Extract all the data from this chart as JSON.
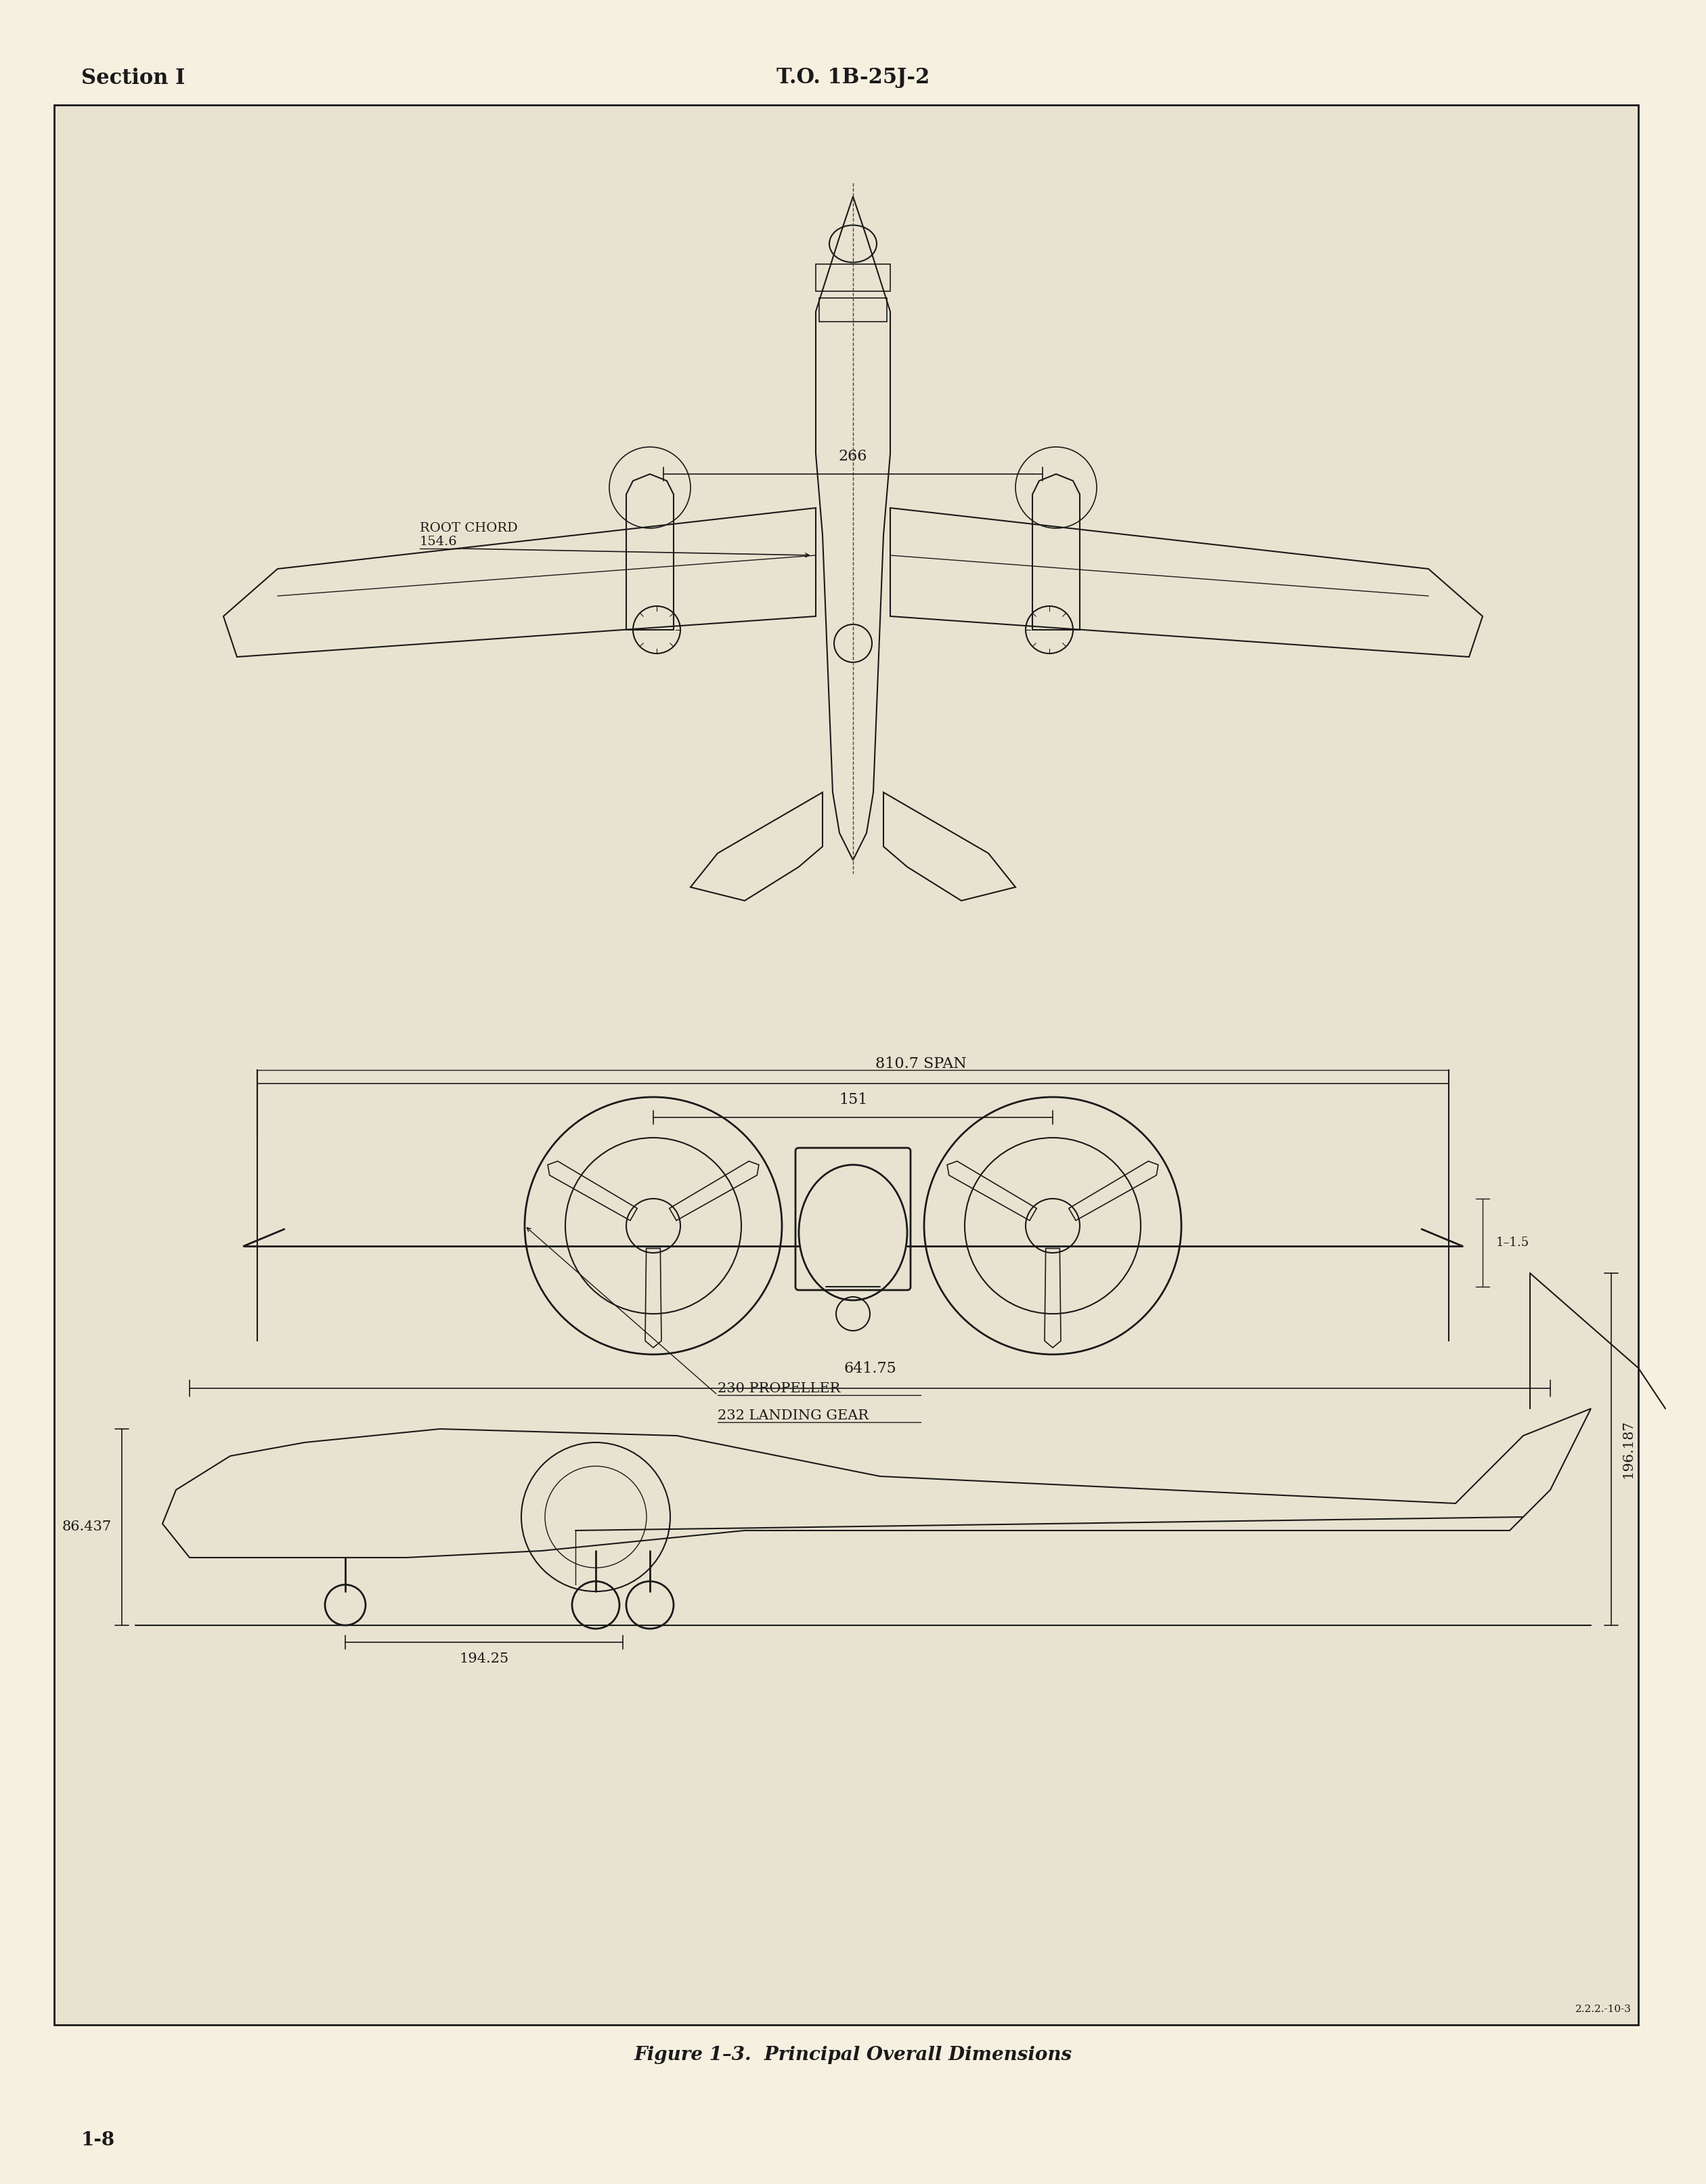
{
  "page_bg": "#f5f0e0",
  "border_bg": "#e8e3d0",
  "text_color": "#1a1a1a",
  "header_left": "Section I",
  "header_center": "T.O. 1B-25J-2",
  "footer_left": "1-8",
  "figure_caption": "Figure 1–3.  Principal Overall Dimensions",
  "dim_266": "266",
  "dim_root_chord": "ROOT CHORD",
  "dim_154_6": "154.6",
  "dim_810_7": "810.7 SPAN",
  "dim_151": "151",
  "dim_11_5": "1–1.5",
  "dim_230": "230 PROPELLER",
  "dim_232": "232 LANDING GEAR",
  "dim_641_75": "641.75",
  "dim_86_437": "86.437",
  "dim_196_187": "196.187",
  "dim_194_25": "194.25",
  "dim_2223": "2.2.2.-10-3"
}
